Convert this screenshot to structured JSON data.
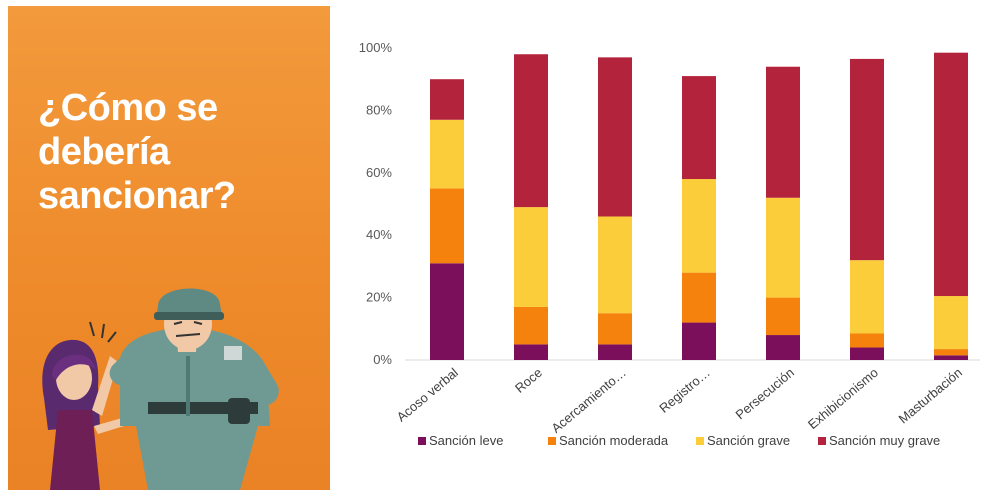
{
  "panel": {
    "title_lines": [
      "¿Cómo se",
      "debería",
      "sancionar?"
    ]
  },
  "chart_data": {
    "type": "bar",
    "stacked": true,
    "categories": [
      "Acoso verbal",
      "Roce",
      "Acercamiento…",
      "Registro…",
      "Persecución",
      "Exhibicionismo",
      "Masturbación"
    ],
    "series": [
      {
        "name": "Sanción leve",
        "color": "#7b0f5c",
        "values": [
          31,
          5,
          5,
          12,
          8,
          4,
          1.5
        ]
      },
      {
        "name": "Sanción moderada",
        "color": "#f5820d",
        "values": [
          24,
          12,
          10,
          16,
          12,
          4.5,
          2
        ]
      },
      {
        "name": "Sanción grave",
        "color": "#fccd3b",
        "values": [
          22,
          32,
          31,
          30,
          32,
          23.5,
          17
        ]
      },
      {
        "name": "Sanción muy grave",
        "color": "#b3243c",
        "values": [
          13,
          49,
          51,
          33,
          42,
          64.5,
          78
        ]
      }
    ],
    "yticks": [
      "0%",
      "20%",
      "40%",
      "60%",
      "80%",
      "100%"
    ],
    "ylim": [
      0,
      100
    ],
    "legend_position": "bottom",
    "grid": false
  }
}
